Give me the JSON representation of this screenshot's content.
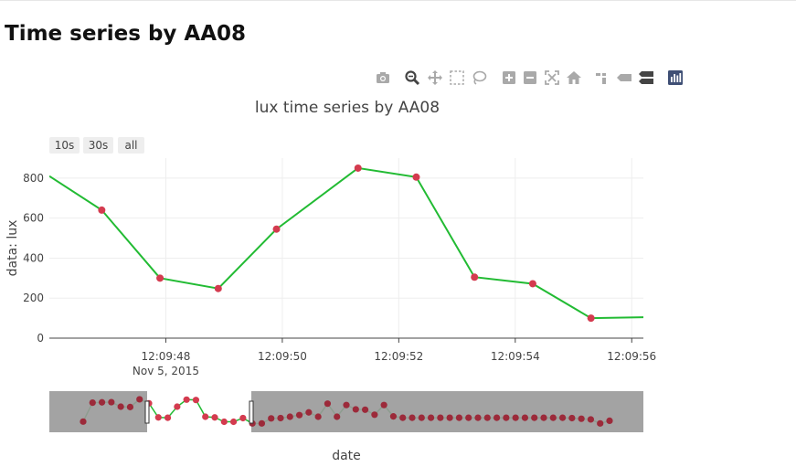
{
  "page": {
    "title": "Time series by AA08"
  },
  "modebar": {
    "buttons": [
      "camera-icon",
      "zoom-icon",
      "pan-icon",
      "box-select-icon",
      "lasso-icon",
      "zoom-in-icon",
      "zoom-out-icon",
      "autoscale-icon",
      "reset-axes-icon",
      "spike-lines-icon",
      "hover-closest-icon",
      "hover-compare-icon",
      "plotly-logo-icon"
    ],
    "active_color": "#444444",
    "inactive_color": "#a9a9a9",
    "logo_color": "#3f4f75"
  },
  "range_selector": {
    "buttons": [
      "10s",
      "30s",
      "all"
    ]
  },
  "colors": {
    "line": "#22bb33",
    "marker": "#d43b4f",
    "marker_dark": "#9c2a3a",
    "grid": "#eeeeee",
    "range_mask": "#999999"
  },
  "chart_data": {
    "type": "line",
    "title": "lux time series by AA08",
    "xlabel": "date",
    "ylabel": "data: lux",
    "ylim": [
      0,
      900
    ],
    "yticks": [
      0,
      200,
      400,
      600,
      800
    ],
    "x_range": [
      "2015-11-05 12:09:46.0",
      "2015-11-05 12:09:56.2"
    ],
    "x_tick_labels": [
      "12:09:48",
      "12:09:50",
      "12:09:52",
      "12:09:54",
      "12:09:56"
    ],
    "x_date_label": "Nov 5, 2015",
    "grid": true,
    "series": [
      {
        "x": [
          "2015-11-05 12:09:46.0",
          "2015-11-05 12:09:46.9",
          "2015-11-05 12:09:47.9",
          "2015-11-05 12:09:48.9",
          "2015-11-05 12:09:49.9",
          "2015-11-05 12:09:51.3",
          "2015-11-05 12:09:52.3",
          "2015-11-05 12:09:53.3",
          "2015-11-05 12:09:54.3",
          "2015-11-05 12:09:55.3",
          "2015-11-05 12:09:56.3"
        ],
        "y": [
          810,
          640,
          300,
          248,
          545,
          850,
          805,
          305,
          272,
          100,
          105
        ]
      }
    ],
    "range_slider": {
      "visible_window": [
        "2015-11-05 12:09:46.0",
        "2015-11-05 12:09:56.2"
      ],
      "y": [
        155,
        720,
        730,
        735,
        600,
        590,
        820,
        700,
        280,
        270,
        600,
        810,
        800,
        300,
        280,
        150,
        150,
        260,
        100,
        100,
        250,
        260,
        300,
        350,
        430,
        300,
        690,
        300,
        650,
        520,
        510,
        360,
        650,
        310,
        270,
        270,
        270,
        270,
        270,
        270,
        270,
        270,
        270,
        270,
        270,
        270,
        270,
        270,
        270,
        270,
        270,
        270,
        260,
        240,
        220,
        100,
        180
      ]
    }
  }
}
